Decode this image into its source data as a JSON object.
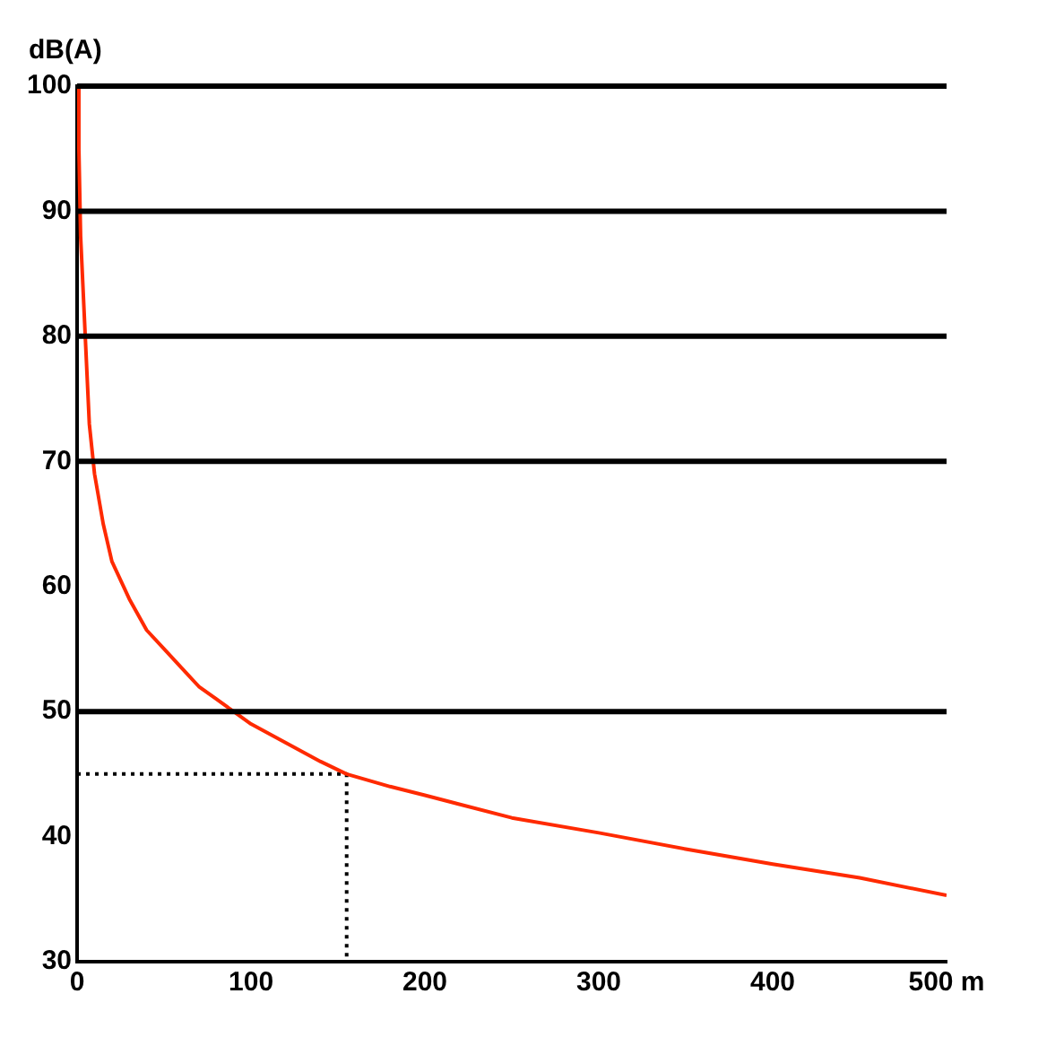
{
  "chart_data": {
    "type": "line",
    "ylabel": "dB(A)",
    "xlim": [
      0,
      500
    ],
    "xticks": [
      0,
      100,
      200,
      300,
      400,
      {
        "value": 500,
        "label": "500 m"
      }
    ],
    "ylim": [
      30,
      100
    ],
    "yticks": [
      30,
      40,
      50,
      60,
      70,
      80,
      90,
      100
    ],
    "grid": false,
    "legend": false,
    "ref_lines": [
      {
        "axis": "y",
        "value": 50,
        "color": "#000000"
      },
      {
        "axis": "y",
        "value": 70,
        "color": "#000000"
      },
      {
        "axis": "y",
        "value": 80,
        "color": "#000000"
      },
      {
        "axis": "y",
        "value": 90,
        "color": "#000000"
      }
    ],
    "series": [
      {
        "color": "#ff2a00",
        "x": [
          0.5,
          1,
          2,
          3,
          5,
          7,
          10,
          15,
          20,
          30,
          40,
          50,
          60,
          70,
          80,
          90,
          100,
          120,
          140,
          155,
          180,
          200,
          250,
          300,
          350,
          400,
          450,
          500
        ],
        "values": [
          100,
          95,
          88,
          85,
          79,
          73,
          69,
          65,
          62,
          59,
          56.5,
          55,
          53.5,
          52,
          51,
          50,
          49,
          47.5,
          46,
          45,
          44,
          43.3,
          41.5,
          40.3,
          39,
          37.8,
          36.7,
          35.3
        ],
        "line_style": "solid"
      },
      {
        "color": "#000000",
        "x": [
          0,
          155,
          155
        ],
        "values": [
          45,
          45,
          30
        ],
        "line_style": "dotted"
      }
    ]
  }
}
